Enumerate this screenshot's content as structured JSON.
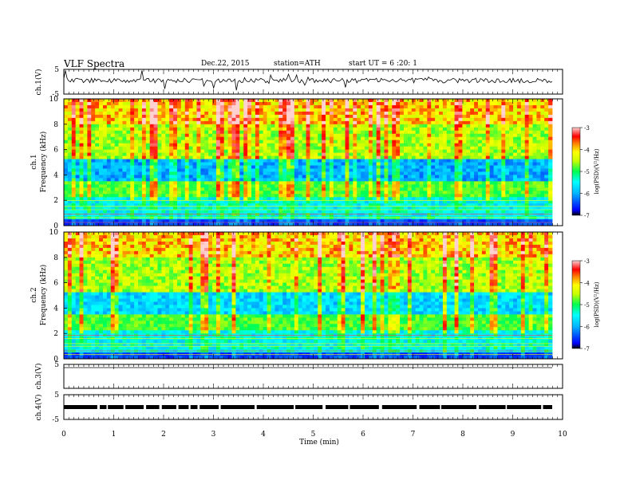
{
  "header": {
    "title": "VLF  Spectra",
    "date": "Dec.22, 2015",
    "station": "station=ATH",
    "start": "start  UT  =   6  :20: 1"
  },
  "chart_data": [
    {
      "type": "line",
      "name": "ch1-waveform",
      "ylabel": "ch.1(V)",
      "ylim": [
        -5,
        5
      ],
      "yticks": [
        "5",
        "-5"
      ],
      "xlim": [
        0,
        10
      ],
      "values": "noise trace near 0 V with spikes"
    },
    {
      "type": "heatmap",
      "name": "ch1-spectrogram",
      "ylabel_channel": "ch.1",
      "ylabel": "Frequency  (kHz)",
      "ylim": [
        0,
        10
      ],
      "yticks": [
        "0",
        "2",
        "4",
        "6",
        "8",
        "10"
      ],
      "xlim": [
        0,
        10
      ],
      "colorbar": {
        "label": "log(PSD)(V²/Hz)",
        "range": [
          -7,
          -3
        ],
        "ticks": [
          "-3",
          "-4",
          "-5",
          "-6",
          "-7"
        ]
      }
    },
    {
      "type": "heatmap",
      "name": "ch2-spectrogram",
      "ylabel_channel": "ch.2",
      "ylabel": "Frequency  (kHz)",
      "ylim": [
        0,
        10
      ],
      "yticks": [
        "0",
        "2",
        "4",
        "6",
        "8",
        "10"
      ],
      "xlim": [
        0,
        10
      ],
      "colorbar": {
        "label": "log(PSD)(V²/Hz)",
        "range": [
          -7,
          -3
        ],
        "ticks": [
          "-3",
          "-4",
          "-5",
          "-6",
          "-7"
        ]
      }
    },
    {
      "type": "line",
      "name": "ch3-waveform",
      "ylabel": "ch.3(V)",
      "ylim": [
        -5,
        5
      ],
      "yticks": [
        "5"
      ],
      "xlim": [
        0,
        10
      ],
      "values": "flat trace near 0 V"
    },
    {
      "type": "line",
      "name": "ch4-waveform",
      "ylabel": "ch.4(V)",
      "ylim": [
        -5,
        5
      ],
      "yticks": [
        "5",
        "-5"
      ],
      "xlim": [
        0,
        10
      ],
      "values": "thick trace near 0 V with gaps"
    }
  ],
  "xaxis": {
    "label": "Time  (min)",
    "ticks": [
      "0",
      "1",
      "2",
      "3",
      "4",
      "5",
      "6",
      "7",
      "8",
      "9",
      "10"
    ]
  }
}
